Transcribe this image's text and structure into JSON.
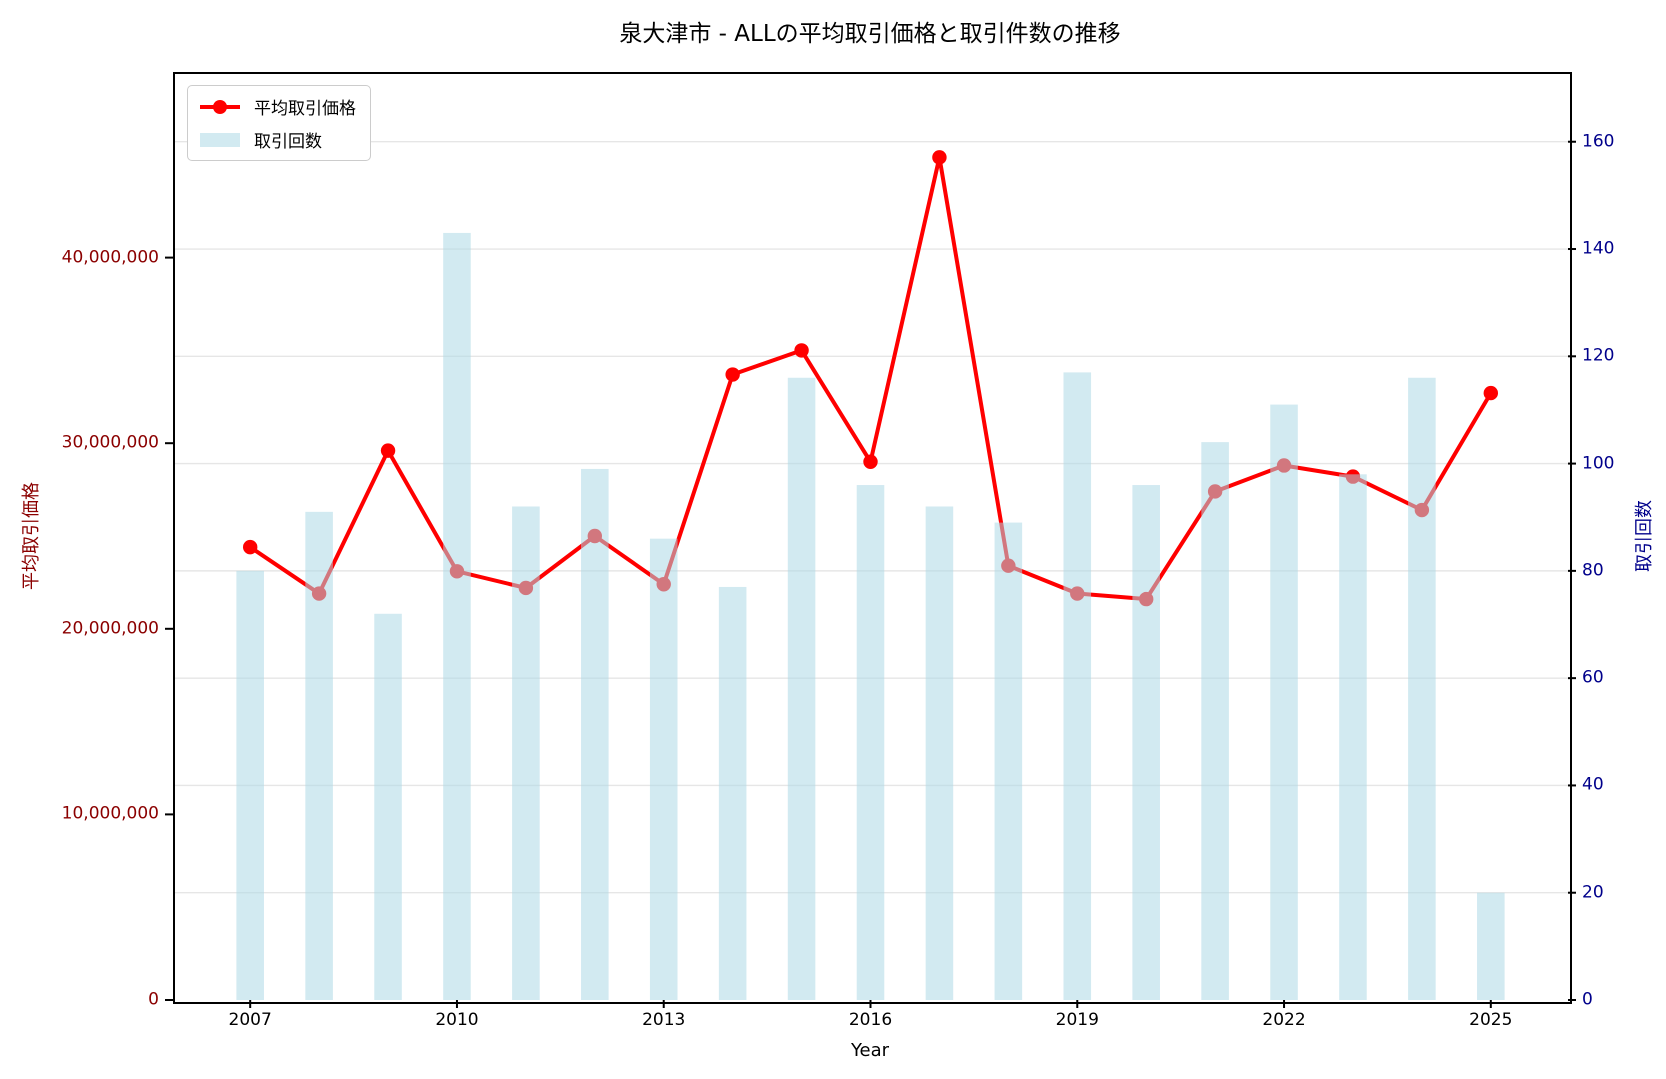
{
  "chart_data": {
    "type": "bar",
    "title": "泉大津市 - ALLの平均取引価格と取引件数の推移",
    "x": [
      2007,
      2008,
      2009,
      2010,
      2011,
      2012,
      2013,
      2014,
      2015,
      2016,
      2017,
      2018,
      2019,
      2020,
      2021,
      2022,
      2023,
      2024,
      2025
    ],
    "series": [
      {
        "name": "平均取引価格",
        "kind": "line",
        "axis": "left",
        "color": "#ff0000",
        "values": [
          24400000,
          21900000,
          29600000,
          23100000,
          22200000,
          25000000,
          22400000,
          33700000,
          35000000,
          29000000,
          45400000,
          23400000,
          21900000,
          21600000,
          27400000,
          28800000,
          28200000,
          26400000,
          32700000
        ]
      },
      {
        "name": "取引回数",
        "kind": "bar",
        "axis": "right",
        "color": "#add8e6",
        "opacity": 0.55,
        "bar_width_years": 0.4,
        "values": [
          80,
          91,
          72,
          143,
          92,
          99,
          86,
          77,
          116,
          96,
          92,
          89,
          117,
          96,
          104,
          111,
          98,
          116,
          20
        ]
      }
    ],
    "xlabel": "Year",
    "ylabel_left": "平均取引価格",
    "ylabel_right": "取引回数",
    "xlim": [
      2005.88,
      2026.12
    ],
    "ylim_left": [
      0,
      50000000
    ],
    "ylim_right": [
      0,
      173
    ],
    "grid": "horizontal gridlines at right-axis ticks",
    "legend_position": "top-left",
    "xticks": [
      {
        "value": 2007,
        "label": "2007"
      },
      {
        "value": 2010,
        "label": "2010"
      },
      {
        "value": 2013,
        "label": "2013"
      },
      {
        "value": 2016,
        "label": "2016"
      },
      {
        "value": 2019,
        "label": "2019"
      },
      {
        "value": 2022,
        "label": "2022"
      },
      {
        "value": 2025,
        "label": "2025"
      }
    ],
    "yticks_left": [
      {
        "value": 0,
        "label": "0"
      },
      {
        "value": 10000000,
        "label": "10,000,000"
      },
      {
        "value": 20000000,
        "label": "20,000,000"
      },
      {
        "value": 30000000,
        "label": "30,000,000"
      },
      {
        "value": 40000000,
        "label": "40,000,000"
      }
    ],
    "yticks_right": [
      {
        "value": 0,
        "label": "0"
      },
      {
        "value": 20,
        "label": "20"
      },
      {
        "value": 40,
        "label": "40"
      },
      {
        "value": 60,
        "label": "60"
      },
      {
        "value": 80,
        "label": "80"
      },
      {
        "value": 100,
        "label": "100"
      },
      {
        "value": 120,
        "label": "120"
      },
      {
        "value": 140,
        "label": "140"
      },
      {
        "value": 160,
        "label": "160"
      }
    ]
  },
  "legend": {
    "items": [
      {
        "label": "平均取引価格",
        "marker": "line-dot",
        "color": "#ff0000"
      },
      {
        "label": "取引回数",
        "marker": "patch",
        "color": "#add8e6"
      }
    ]
  },
  "colors": {
    "left_axis": "#8b0000",
    "right_axis": "#00008b",
    "gridline": "#e6e6e6",
    "line": "#ff0000",
    "bar": "#add8e6",
    "spine": "#000000"
  }
}
